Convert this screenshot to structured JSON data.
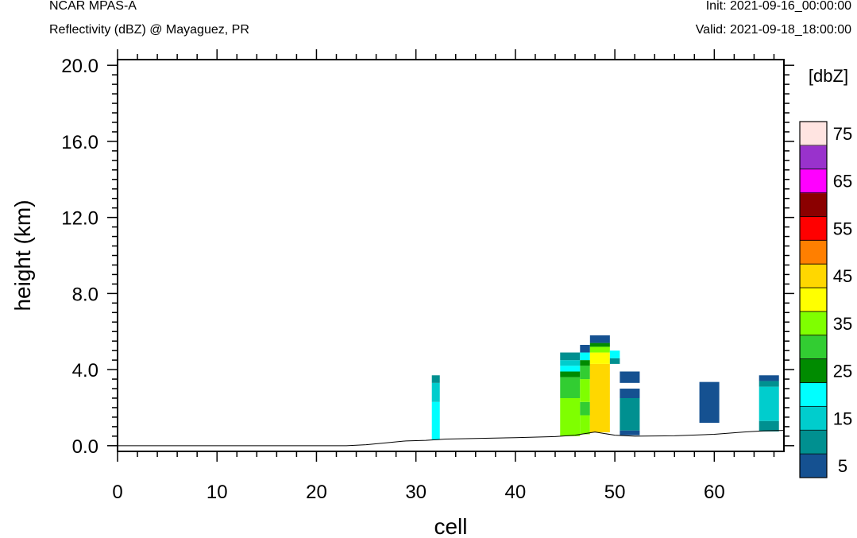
{
  "header": {
    "model": "NCAR MPAS-A",
    "field": "Reflectivity (dBZ) @ Mayaguez, PR",
    "init": "Init: 2021-09-16_00:00:00",
    "valid": "Valid: 2021-09-18_18:00:00"
  },
  "chart_data": {
    "type": "heatmap",
    "xlabel": "cell",
    "ylabel": "height (km)",
    "xlim": [
      0,
      67
    ],
    "ylim": [
      -0.3,
      20.3
    ],
    "x_ticks": [
      0,
      10,
      20,
      30,
      40,
      50,
      60
    ],
    "y_ticks": [
      "0.0",
      "4.0",
      "8.0",
      "12.0",
      "16.0",
      "20.0"
    ],
    "colorbar": {
      "title": "[dbZ]",
      "levels_labeled": [
        "5",
        "15",
        "25",
        "35",
        "45",
        "55",
        "65",
        "75"
      ],
      "colors": [
        "#155191",
        "#009090",
        "#00cdcd",
        "#00ffff",
        "#008b00",
        "#32cd32",
        "#7fff00",
        "#ffff00",
        "#ffd700",
        "#ff7f00",
        "#ff0000",
        "#8b0000",
        "#ff00ff",
        "#9932cc",
        "#ffe4e1"
      ]
    },
    "terrain": [
      [
        0,
        0.0
      ],
      [
        23,
        0.0
      ],
      [
        25,
        0.05
      ],
      [
        27,
        0.15
      ],
      [
        29,
        0.25
      ],
      [
        31,
        0.28
      ],
      [
        33,
        0.35
      ],
      [
        36,
        0.38
      ],
      [
        40,
        0.42
      ],
      [
        44,
        0.48
      ],
      [
        46,
        0.55
      ],
      [
        48,
        0.72
      ],
      [
        50,
        0.55
      ],
      [
        52,
        0.5
      ],
      [
        56,
        0.52
      ],
      [
        60,
        0.6
      ],
      [
        63,
        0.72
      ],
      [
        65,
        0.78
      ],
      [
        67,
        0.8
      ]
    ],
    "cells": [
      {
        "x0": 31.6,
        "x1": 32.4,
        "y0": 0.3,
        "y1": 2.3,
        "c": 3
      },
      {
        "x0": 31.6,
        "x1": 32.4,
        "y0": 2.3,
        "y1": 3.3,
        "c": 2
      },
      {
        "x0": 31.6,
        "x1": 32.4,
        "y0": 3.3,
        "y1": 3.7,
        "c": 1
      },
      {
        "x0": 44.5,
        "x1": 46.5,
        "y0": 0.5,
        "y1": 2.5,
        "c": 6
      },
      {
        "x0": 44.5,
        "x1": 46.5,
        "y0": 2.5,
        "y1": 3.6,
        "c": 5
      },
      {
        "x0": 44.5,
        "x1": 46.5,
        "y0": 3.6,
        "y1": 3.9,
        "c": 4
      },
      {
        "x0": 44.5,
        "x1": 46.5,
        "y0": 3.9,
        "y1": 4.2,
        "c": 3
      },
      {
        "x0": 44.5,
        "x1": 46.5,
        "y0": 4.2,
        "y1": 4.5,
        "c": 2
      },
      {
        "x0": 44.5,
        "x1": 46.5,
        "y0": 4.5,
        "y1": 4.9,
        "c": 1
      },
      {
        "x0": 46.5,
        "x1": 47.5,
        "y0": 0.6,
        "y1": 1.6,
        "c": 6
      },
      {
        "x0": 46.5,
        "x1": 47.5,
        "y0": 1.6,
        "y1": 2.3,
        "c": 5
      },
      {
        "x0": 46.5,
        "x1": 47.5,
        "y0": 2.3,
        "y1": 3.5,
        "c": 6
      },
      {
        "x0": 46.5,
        "x1": 47.5,
        "y0": 3.5,
        "y1": 4.2,
        "c": 5
      },
      {
        "x0": 46.5,
        "x1": 47.5,
        "y0": 4.2,
        "y1": 4.5,
        "c": 4
      },
      {
        "x0": 46.5,
        "x1": 47.5,
        "y0": 4.5,
        "y1": 4.9,
        "c": 3
      },
      {
        "x0": 46.5,
        "x1": 47.5,
        "y0": 4.9,
        "y1": 5.3,
        "c": 0
      },
      {
        "x0": 47.5,
        "x1": 49.5,
        "y0": 0.7,
        "y1": 4.3,
        "c": 8
      },
      {
        "x0": 47.5,
        "x1": 49.5,
        "y0": 4.3,
        "y1": 4.9,
        "c": 7
      },
      {
        "x0": 47.5,
        "x1": 49.5,
        "y0": 4.9,
        "y1": 5.2,
        "c": 6
      },
      {
        "x0": 47.5,
        "x1": 49.5,
        "y0": 5.2,
        "y1": 5.4,
        "c": 4
      },
      {
        "x0": 47.5,
        "x1": 49.5,
        "y0": 5.4,
        "y1": 5.8,
        "c": 0
      },
      {
        "x0": 49.5,
        "x1": 50.5,
        "y0": 4.3,
        "y1": 4.6,
        "c": 1
      },
      {
        "x0": 49.5,
        "x1": 50.5,
        "y0": 4.6,
        "y1": 5.0,
        "c": 3
      },
      {
        "x0": 50.5,
        "x1": 52.5,
        "y0": 0.55,
        "y1": 0.8,
        "c": 0
      },
      {
        "x0": 50.5,
        "x1": 52.5,
        "y0": 0.8,
        "y1": 2.5,
        "c": 1
      },
      {
        "x0": 50.5,
        "x1": 52.5,
        "y0": 2.5,
        "y1": 3.0,
        "c": 0
      },
      {
        "x0": 50.5,
        "x1": 52.5,
        "y0": 3.3,
        "y1": 3.9,
        "c": 0
      },
      {
        "x0": 58.5,
        "x1": 60.5,
        "y0": 1.2,
        "y1": 3.35,
        "c": 0
      },
      {
        "x0": 64.5,
        "x1": 66.5,
        "y0": 0.75,
        "y1": 1.3,
        "c": 1
      },
      {
        "x0": 64.5,
        "x1": 66.5,
        "y0": 1.3,
        "y1": 3.1,
        "c": 2
      },
      {
        "x0": 64.5,
        "x1": 66.5,
        "y0": 3.1,
        "y1": 3.4,
        "c": 1
      },
      {
        "x0": 64.5,
        "x1": 66.5,
        "y0": 3.4,
        "y1": 3.7,
        "c": 0
      }
    ]
  }
}
